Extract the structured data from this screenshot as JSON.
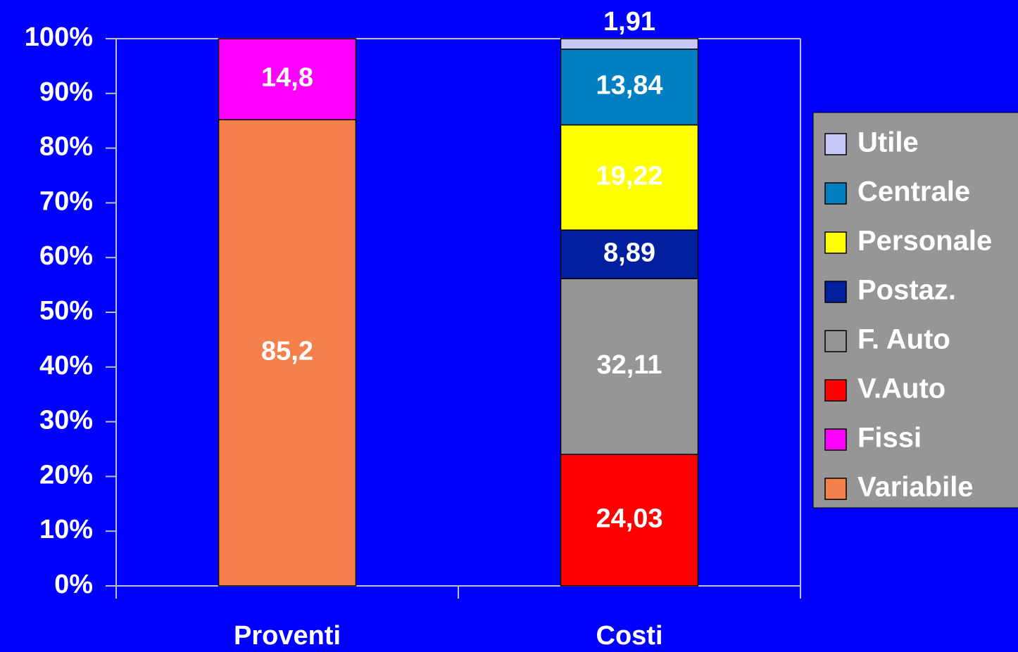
{
  "chart_data": {
    "type": "stacked-bar",
    "categories": [
      "Proventi",
      "Costi"
    ],
    "series": [
      {
        "name": "Variabile",
        "color": "#f4804c",
        "values": [
          85.2,
          null
        ],
        "value_labels": [
          "85,2",
          null
        ]
      },
      {
        "name": "Fissi",
        "color": "#ff00ff",
        "values": [
          14.8,
          null
        ],
        "value_labels": [
          "14,8",
          null
        ]
      },
      {
        "name": "V.Auto",
        "color": "#ff0000",
        "values": [
          null,
          24.03
        ],
        "value_labels": [
          null,
          "24,03"
        ]
      },
      {
        "name": "F. Auto",
        "color": "#969696",
        "values": [
          null,
          32.11
        ],
        "value_labels": [
          null,
          "32,11"
        ]
      },
      {
        "name": "Postaz.",
        "color": "#00209f",
        "values": [
          null,
          8.89
        ],
        "value_labels": [
          null,
          "8,89"
        ]
      },
      {
        "name": "Personale",
        "color": "#ffff00",
        "values": [
          null,
          19.22
        ],
        "value_labels": [
          null,
          "19,22"
        ]
      },
      {
        "name": "Centrale",
        "color": "#0080c0",
        "values": [
          null,
          13.84
        ],
        "value_labels": [
          null,
          "13,84"
        ]
      },
      {
        "name": "Utile",
        "color": "#c8c8f8",
        "values": [
          null,
          1.91
        ],
        "value_labels": [
          null,
          "1,91"
        ]
      }
    ],
    "ylim": [
      0,
      100
    ],
    "yticks": [
      {
        "value": 0,
        "label": "0%"
      },
      {
        "value": 10,
        "label": "10%"
      },
      {
        "value": 20,
        "label": "20%"
      },
      {
        "value": 30,
        "label": "30%"
      },
      {
        "value": 40,
        "label": "40%"
      },
      {
        "value": 50,
        "label": "50%"
      },
      {
        "value": 60,
        "label": "60%"
      },
      {
        "value": 70,
        "label": "70%"
      },
      {
        "value": 80,
        "label": "80%"
      },
      {
        "value": 90,
        "label": "90%"
      },
      {
        "value": 100,
        "label": "100%"
      }
    ],
    "legend": "right"
  }
}
